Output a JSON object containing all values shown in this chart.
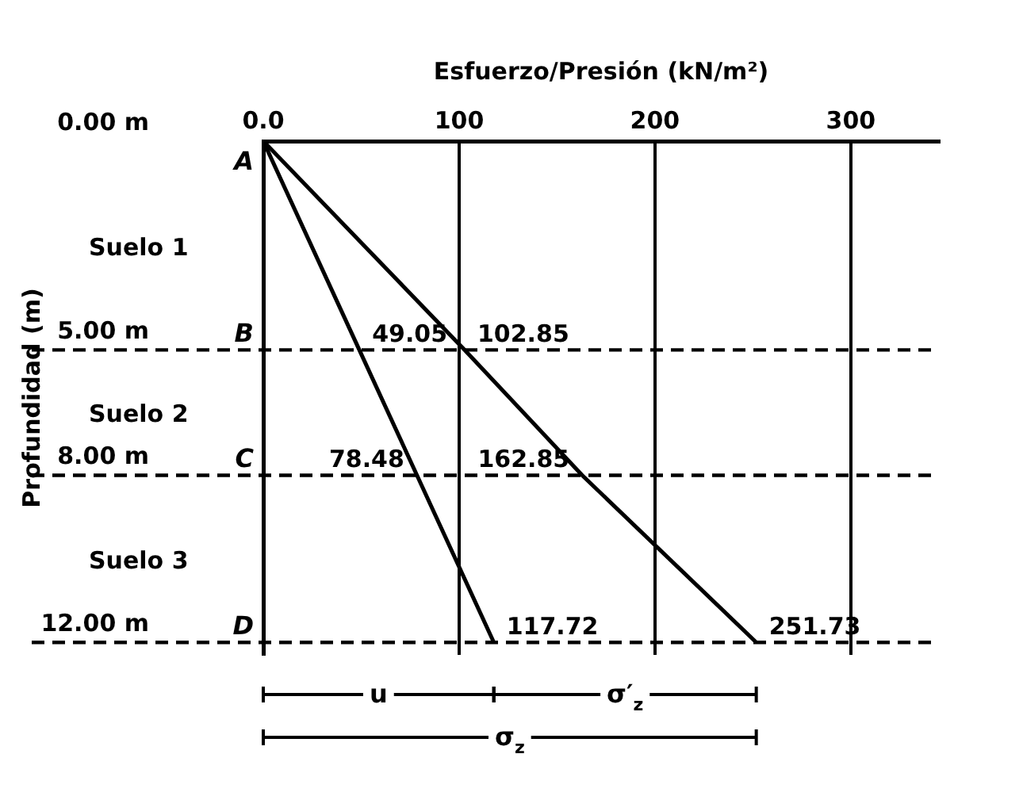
{
  "chart_data": {
    "type": "line",
    "xlabel": "Esfuerzo/Presión (kN/m²)",
    "ylabel": "Profundidad (m)",
    "series": [
      {
        "color": "#000000",
        "x": [
          0,
          49.05,
          78.48,
          117.72
        ],
        "values": [
          0,
          5,
          8,
          12
        ]
      },
      {
        "color": "#000000",
        "x": [
          0,
          102.85,
          162.85,
          251.73
        ],
        "values": [
          0,
          5,
          8,
          12
        ]
      }
    ],
    "xlim": [
      0,
      345
    ],
    "xticks": [
      {
        "value": 0,
        "label": "0.0"
      },
      100,
      200,
      300
    ],
    "ylim": [
      12.3,
      0
    ],
    "yticks": [
      {
        "value": 0,
        "label": "0.00 m"
      },
      {
        "value": 5,
        "label": "5.00 m"
      },
      {
        "value": 8,
        "label": "8.00 m"
      },
      {
        "value": 12,
        "label": "12.00 m"
      }
    ],
    "grid": "x",
    "marker": "none",
    "line_style": "solid",
    "ref_lines": [
      {
        "axis": "y",
        "value": 5,
        "line_style": "dashed"
      },
      {
        "axis": "y",
        "value": 8,
        "line_style": "dashed"
      },
      {
        "axis": "y",
        "value": 12,
        "line_style": "dashed"
      }
    ],
    "annotations": [
      "Suelo 1",
      "Suelo 2",
      "Suelo 3",
      {
        "text": "A",
        "x": 0,
        "y": 0
      },
      {
        "text": "B",
        "x": 0,
        "y": 5
      },
      {
        "text": "C",
        "x": 0,
        "y": 8
      },
      {
        "text": "D",
        "x": 0,
        "y": 12
      },
      {
        "text": "49.05",
        "x": 49.05,
        "y": 5
      },
      {
        "text": "102.85",
        "x": 102.85,
        "y": 5
      },
      {
        "text": "78.48",
        "x": 78.48,
        "y": 8
      },
      {
        "text": "162.85",
        "x": 162.85,
        "y": 8
      },
      {
        "text": "117.72",
        "x": 117.72,
        "y": 12
      },
      {
        "text": "251.73",
        "x": 251.73,
        "y": 12
      },
      "u",
      "σ′$_{z}$",
      "σ$_{z}$"
    ]
  }
}
